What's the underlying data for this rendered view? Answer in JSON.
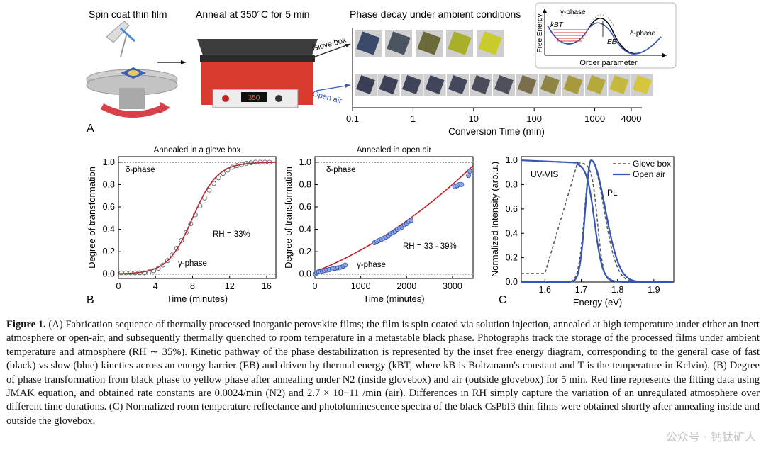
{
  "panel_a": {
    "letter": "A",
    "step1": "Spin coat thin film",
    "step2": "Anneal at 350°C for 5 min",
    "step3": "Phase decay under ambient conditions",
    "hotplate_display": "350",
    "glovebox_label": "Glove box",
    "openair_label": "Open air",
    "timeline_ticks": [
      "0.1",
      "1",
      "10",
      "100",
      "1000",
      "4000"
    ],
    "timeline_values": [
      0.1,
      1,
      10,
      100,
      1000,
      4000
    ],
    "timeline_label": "Conversion Time (min)",
    "inset": {
      "ylabel": "Free Energy",
      "xlabel": "Order parameter",
      "gamma": "γ-phase",
      "delta": "δ-phase",
      "kbt": "kBT",
      "eb": "EB"
    }
  },
  "panel_b": {
    "letter": "B"
  },
  "panel_c": {
    "letter": "C"
  },
  "chart_data": [
    {
      "type": "scatter",
      "title": "Annealed in a glove box",
      "xlabel": "Time (minutes)",
      "ylabel": "Degree of transformation",
      "xlim": [
        0,
        17
      ],
      "ylim": [
        -0.04,
        1.05
      ],
      "xticks": [
        0,
        4,
        8,
        12,
        16
      ],
      "yticks": [
        0.0,
        0.2,
        0.4,
        0.6,
        0.8,
        1.0
      ],
      "annotations": [
        "δ-phase",
        "γ-phase",
        "RH = 33%"
      ],
      "points": [
        [
          0.3,
          0.01
        ],
        [
          0.8,
          0.01
        ],
        [
          1.3,
          0.01
        ],
        [
          1.8,
          0.01
        ],
        [
          2.3,
          0.01
        ],
        [
          2.8,
          0.01
        ],
        [
          3.3,
          0.02
        ],
        [
          3.8,
          0.03
        ],
        [
          4.3,
          0.05
        ],
        [
          4.8,
          0.08
        ],
        [
          5.3,
          0.12
        ],
        [
          5.8,
          0.17
        ],
        [
          6.3,
          0.23
        ],
        [
          6.8,
          0.3
        ],
        [
          7.3,
          0.37
        ],
        [
          7.8,
          0.45
        ],
        [
          8.3,
          0.53
        ],
        [
          8.8,
          0.61
        ],
        [
          9.3,
          0.68
        ],
        [
          9.8,
          0.75
        ],
        [
          10.3,
          0.81
        ],
        [
          10.8,
          0.86
        ],
        [
          11.3,
          0.9
        ],
        [
          11.8,
          0.93
        ],
        [
          12.3,
          0.955
        ],
        [
          12.8,
          0.97
        ],
        [
          13.3,
          0.98
        ],
        [
          13.8,
          0.99
        ],
        [
          14.3,
          0.995
        ],
        [
          14.8,
          1.0
        ],
        [
          15.3,
          1.0
        ],
        [
          15.8,
          1.0
        ],
        [
          16.3,
          1.0
        ]
      ],
      "fit_k": 0.0024
    },
    {
      "type": "scatter",
      "title": "Annealed in open air",
      "xlabel": "Time (minutes)",
      "ylabel": "Degree of transformation",
      "xlim": [
        0,
        3450
      ],
      "ylim": [
        -0.04,
        1.05
      ],
      "xticks": [
        0,
        1000,
        2000,
        3000
      ],
      "yticks": [
        0.0,
        0.2,
        0.4,
        0.6,
        0.8,
        1.0
      ],
      "annotations": [
        "δ-phase",
        "γ-phase",
        "RH = 33 - 39%"
      ],
      "points": [
        [
          10,
          0.0
        ],
        [
          40,
          0.01
        ],
        [
          80,
          0.02
        ],
        [
          120,
          0.02
        ],
        [
          160,
          0.025
        ],
        [
          200,
          0.03
        ],
        [
          260,
          0.035
        ],
        [
          320,
          0.04
        ],
        [
          380,
          0.045
        ],
        [
          440,
          0.05
        ],
        [
          500,
          0.055
        ],
        [
          560,
          0.06
        ],
        [
          620,
          0.07
        ],
        [
          660,
          0.08
        ],
        [
          1300,
          0.28
        ],
        [
          1350,
          0.29
        ],
        [
          1400,
          0.3
        ],
        [
          1450,
          0.31
        ],
        [
          1500,
          0.32
        ],
        [
          1550,
          0.33
        ],
        [
          1600,
          0.34
        ],
        [
          1650,
          0.36
        ],
        [
          1700,
          0.37
        ],
        [
          1750,
          0.38
        ],
        [
          1800,
          0.4
        ],
        [
          1850,
          0.41
        ],
        [
          1900,
          0.42
        ],
        [
          1950,
          0.44
        ],
        [
          2000,
          0.45
        ],
        [
          2050,
          0.47
        ],
        [
          2100,
          0.48
        ],
        [
          3050,
          0.78
        ],
        [
          3100,
          0.79
        ],
        [
          3150,
          0.8
        ],
        [
          3200,
          0.8
        ],
        [
          3350,
          0.88
        ],
        [
          3380,
          0.92
        ]
      ]
    },
    {
      "type": "line",
      "title": "",
      "xlabel": "Energy (eV)",
      "ylabel": "Normalized Intensity (arb.u.)",
      "xlim": [
        1.535,
        1.955
      ],
      "ylim": [
        0,
        1.03
      ],
      "xticks": [
        1.6,
        1.7,
        1.8,
        1.9
      ],
      "yticks": [
        0.0,
        0.2,
        0.4,
        0.6,
        0.8,
        1.0
      ],
      "annotations": [
        "UV-VIS",
        "PL"
      ],
      "legend": "top-right",
      "series": [
        {
          "name": "Glove box",
          "style": "dashed",
          "color": "#555555"
        },
        {
          "name": "Open air",
          "style": "solid",
          "color": "#3456b5"
        }
      ]
    }
  ],
  "caption": {
    "fig_label": "Figure 1.",
    "text": "(A) Fabrication sequence of thermally processed inorganic perovskite films; the film is spin coated via solution injection, annealed at high temperature under either an inert atmosphere or open-air, and subsequently thermally quenched to room temperature in a metastable black phase. Photographs track the storage of the processed films under ambient temperature and atmosphere (RH ∼ 35%). Kinetic pathway of the phase destabilization is represented by the inset free energy diagram, corresponding to the general case of fast (black) vs slow (blue) kinetics across an energy barrier (EB) and driven by thermal energy (kBT, where kB is Boltzmann's constant and T is the temperature in Kelvin). (B) Degree of phase transformation from black phase to yellow phase after annealing under N2 (inside glovebox) and air (outside glovebox) for 5 min. Red line represents the fitting data using JMAK equation, and obtained rate constants are 0.0024/min (N2) and 2.7 × 10−11 /min (air). Differences in RH simply capture the variation of an unregulated atmosphere over different time durations. (C) Normalized room temperature reflectance and photoluminescence spectra of the black CsPbI3 thin films were obtained shortly after annealing inside and outside the glovebox."
  },
  "watermark": "公众号 · 钙钛矿人"
}
